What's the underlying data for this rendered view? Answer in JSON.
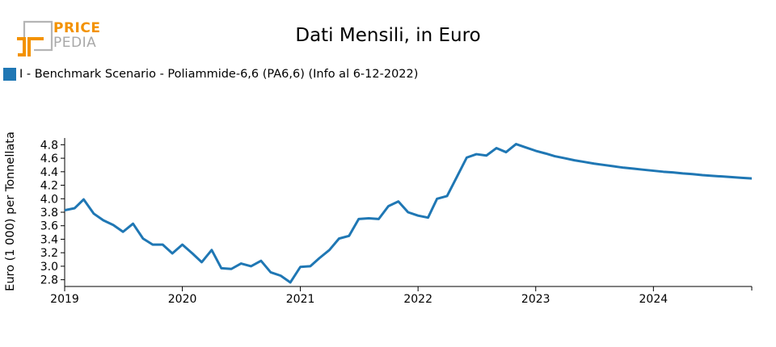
{
  "logo": {
    "line1": "PRICE",
    "line2": "PEDIA",
    "accent": "#f39200",
    "gray": "#a8a8a8"
  },
  "chart_data": {
    "type": "line",
    "title": "Dati Mensili, in Euro",
    "ylabel": "Euro (1 000) per Tonnellata",
    "xlabel": "",
    "ylim": [
      2.7,
      4.9
    ],
    "xlim": [
      "2019-01-01",
      "2024-11-01"
    ],
    "yticks": [
      2.8,
      3.0,
      3.2,
      3.4,
      3.6,
      3.8,
      4.0,
      4.2,
      4.4,
      4.6,
      4.8
    ],
    "xticks": [
      "2019-01-01",
      "2020-01-01",
      "2021-01-01",
      "2022-01-01",
      "2023-01-01",
      "2024-01-01"
    ],
    "xtick_labels": [
      "2019",
      "2020",
      "2021",
      "2022",
      "2023",
      "2024"
    ],
    "legend_position": "top-left",
    "series": [
      {
        "name": "I - Benchmark Scenario - Poliammide-6,6 (PA6,6) (Info al 6-12-2022)",
        "color": "#1f77b4",
        "points": [
          [
            "2019-01-01",
            3.83
          ],
          [
            "2019-02-01",
            3.86
          ],
          [
            "2019-03-01",
            3.99
          ],
          [
            "2019-04-01",
            3.78
          ],
          [
            "2019-05-01",
            3.68
          ],
          [
            "2019-06-01",
            3.61
          ],
          [
            "2019-07-01",
            3.51
          ],
          [
            "2019-08-01",
            3.63
          ],
          [
            "2019-09-01",
            3.41
          ],
          [
            "2019-10-01",
            3.32
          ],
          [
            "2019-11-01",
            3.32
          ],
          [
            "2019-12-01",
            3.19
          ],
          [
            "2020-01-01",
            3.32
          ],
          [
            "2020-02-01",
            3.19
          ],
          [
            "2020-03-01",
            3.06
          ],
          [
            "2020-04-01",
            3.24
          ],
          [
            "2020-05-01",
            2.97
          ],
          [
            "2020-06-01",
            2.96
          ],
          [
            "2020-07-01",
            3.04
          ],
          [
            "2020-08-01",
            3.0
          ],
          [
            "2020-09-01",
            3.08
          ],
          [
            "2020-10-01",
            2.91
          ],
          [
            "2020-11-01",
            2.86
          ],
          [
            "2020-12-01",
            2.76
          ],
          [
            "2021-01-01",
            2.99
          ],
          [
            "2021-02-01",
            3.0
          ],
          [
            "2021-03-01",
            3.12
          ],
          [
            "2021-04-01",
            3.24
          ],
          [
            "2021-05-01",
            3.41
          ],
          [
            "2021-06-01",
            3.45
          ],
          [
            "2021-07-01",
            3.7
          ],
          [
            "2021-08-01",
            3.71
          ],
          [
            "2021-09-01",
            3.7
          ],
          [
            "2021-10-01",
            3.89
          ],
          [
            "2021-11-01",
            3.96
          ],
          [
            "2021-12-01",
            3.8
          ],
          [
            "2022-01-01",
            3.75
          ],
          [
            "2022-02-01",
            3.72
          ],
          [
            "2022-03-01",
            4.0
          ],
          [
            "2022-04-01",
            4.04
          ],
          [
            "2022-05-01",
            4.32
          ],
          [
            "2022-06-01",
            4.61
          ],
          [
            "2022-07-01",
            4.66
          ],
          [
            "2022-08-01",
            4.64
          ],
          [
            "2022-09-01",
            4.75
          ],
          [
            "2022-10-01",
            4.69
          ],
          [
            "2022-11-01",
            4.81
          ],
          [
            "2022-12-01",
            4.76
          ],
          [
            "2023-01-01",
            4.71
          ],
          [
            "2023-02-01",
            4.67
          ],
          [
            "2023-03-01",
            4.63
          ],
          [
            "2023-04-01",
            4.6
          ],
          [
            "2023-05-01",
            4.57
          ],
          [
            "2023-06-01",
            4.545
          ],
          [
            "2023-07-01",
            4.52
          ],
          [
            "2023-08-01",
            4.5
          ],
          [
            "2023-09-01",
            4.48
          ],
          [
            "2023-10-01",
            4.46
          ],
          [
            "2023-11-01",
            4.445
          ],
          [
            "2023-12-01",
            4.43
          ],
          [
            "2024-01-01",
            4.415
          ],
          [
            "2024-02-01",
            4.4
          ],
          [
            "2024-03-01",
            4.39
          ],
          [
            "2024-04-01",
            4.375
          ],
          [
            "2024-05-01",
            4.365
          ],
          [
            "2024-06-01",
            4.35
          ],
          [
            "2024-07-01",
            4.34
          ],
          [
            "2024-08-01",
            4.33
          ],
          [
            "2024-09-01",
            4.32
          ],
          [
            "2024-10-01",
            4.31
          ],
          [
            "2024-11-01",
            4.3
          ],
          [
            "2024-12-01",
            4.29
          ],
          [
            "2025-01-01",
            4.28
          ],
          [
            "2025-02-01",
            4.27
          ]
        ]
      }
    ]
  }
}
